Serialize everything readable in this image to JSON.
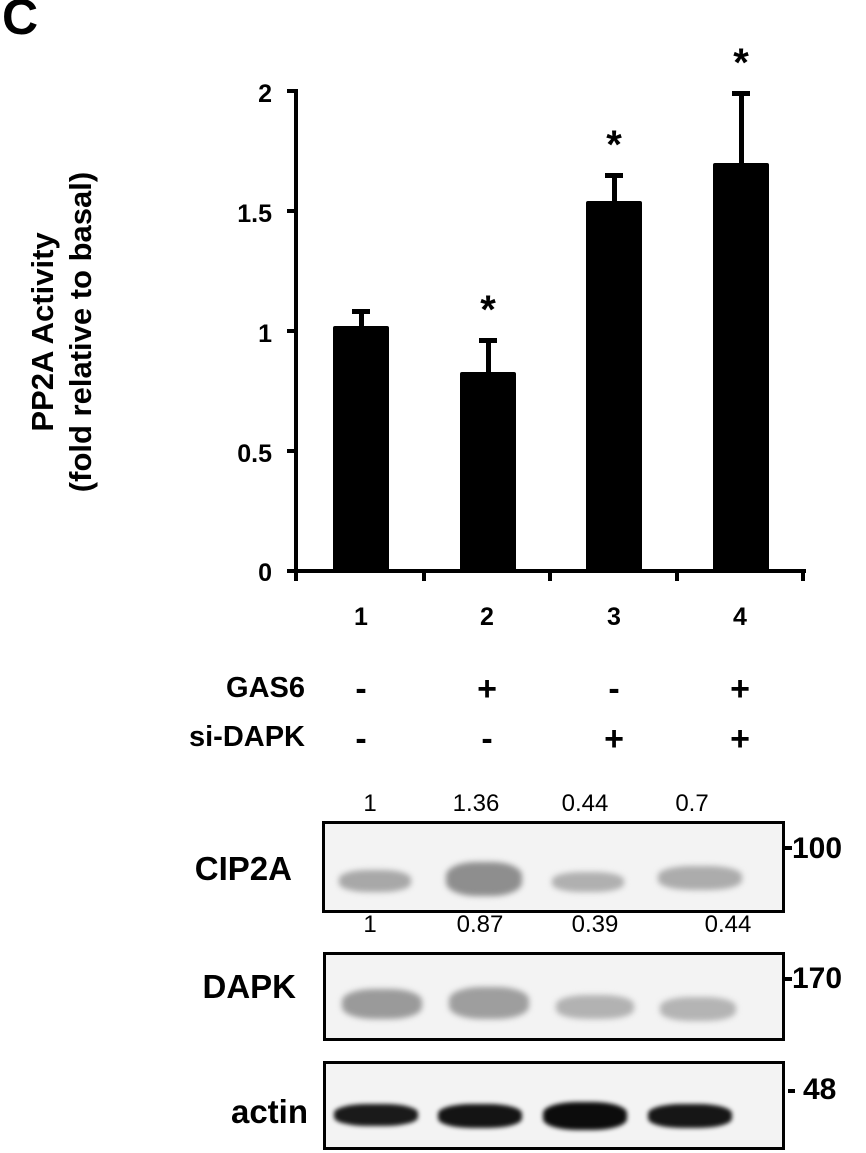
{
  "panel_label": "C",
  "chart_data": {
    "type": "bar",
    "title": "",
    "xlabel": "",
    "ylabel": "PP2A Activity (fold relative to basal)",
    "ylabel_lines": [
      "PP2A Activity",
      "(fold relative to basal)"
    ],
    "categories": [
      "1",
      "2",
      "3",
      "4"
    ],
    "values": [
      1.02,
      0.83,
      1.54,
      1.7
    ],
    "error_upper": [
      0.07,
      0.14,
      0.12,
      0.3
    ],
    "significance": [
      "",
      "*",
      "*",
      "*"
    ],
    "ylim": [
      0,
      2
    ],
    "yticks": [
      "0",
      "0.5",
      "1",
      "1.5",
      "2"
    ],
    "bar_color": "#000000",
    "grid": false,
    "legend": null
  },
  "conditions": {
    "rows": [
      {
        "label": "GAS6",
        "signs": [
          "-",
          "+",
          "-",
          "+"
        ]
      },
      {
        "label": "si-DAPK",
        "signs": [
          "-",
          "-",
          "+",
          "+"
        ]
      }
    ]
  },
  "blots": [
    {
      "label": "CIP2A",
      "quant": [
        "1",
        "1.36",
        "0.44",
        "0.7"
      ],
      "mw": "100"
    },
    {
      "label": "DAPK",
      "quant": [
        "1",
        "0.87",
        "0.39",
        "0.44"
      ],
      "mw": "170"
    },
    {
      "label": "actin",
      "quant": [],
      "mw": "48"
    }
  ]
}
